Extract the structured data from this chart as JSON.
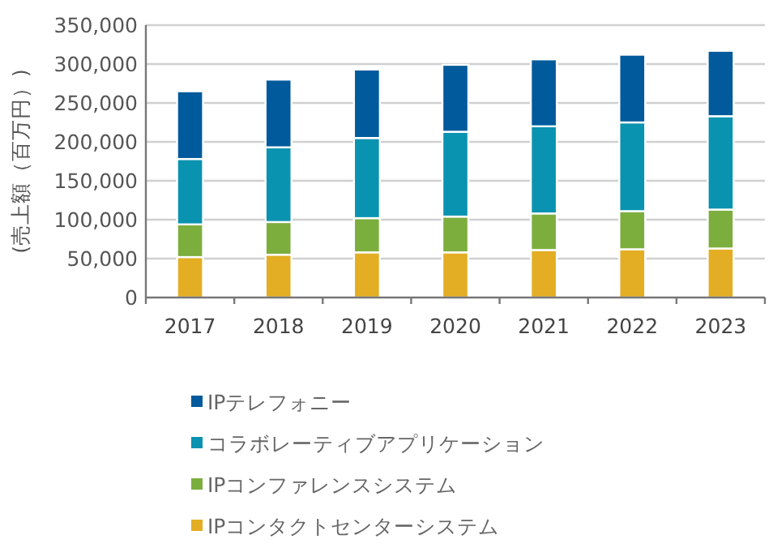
{
  "chart_data": {
    "type": "bar",
    "stacked": true,
    "ylabel": "(売上額（百万円）)",
    "categories": [
      "2017",
      "2018",
      "2019",
      "2020",
      "2021",
      "2022",
      "2023"
    ],
    "series": [
      {
        "name": "IPコンタクトセンターシステム",
        "color": "#e3ae24",
        "values": [
          52000,
          55000,
          58000,
          58000,
          61000,
          62000,
          63000
        ]
      },
      {
        "name": "IPコンファレンスシステム",
        "color": "#7cae3e",
        "values": [
          42000,
          42000,
          44000,
          46000,
          47000,
          49000,
          50000
        ]
      },
      {
        "name": "コラボレーティブアプリケーション",
        "color": "#0a93b0",
        "values": [
          84000,
          96000,
          103000,
          109000,
          112000,
          114000,
          120000
        ]
      },
      {
        "name": "IPテレフォニー",
        "color": "#005a9c",
        "values": [
          87000,
          87000,
          88000,
          86000,
          86000,
          87000,
          84000
        ]
      }
    ],
    "ylim": [
      0,
      350000
    ],
    "yticks": [
      {
        "value": 0,
        "label": "0"
      },
      {
        "value": 50000,
        "label": "50,000"
      },
      {
        "value": 100000,
        "label": "100,000"
      },
      {
        "value": 150000,
        "label": "150,000"
      },
      {
        "value": 200000,
        "label": "200,000"
      },
      {
        "value": 250000,
        "label": "250,000"
      },
      {
        "value": 300000,
        "label": "300,000"
      },
      {
        "value": 350000,
        "label": "350,000"
      }
    ],
    "grid": "y",
    "legend": "bottom"
  }
}
